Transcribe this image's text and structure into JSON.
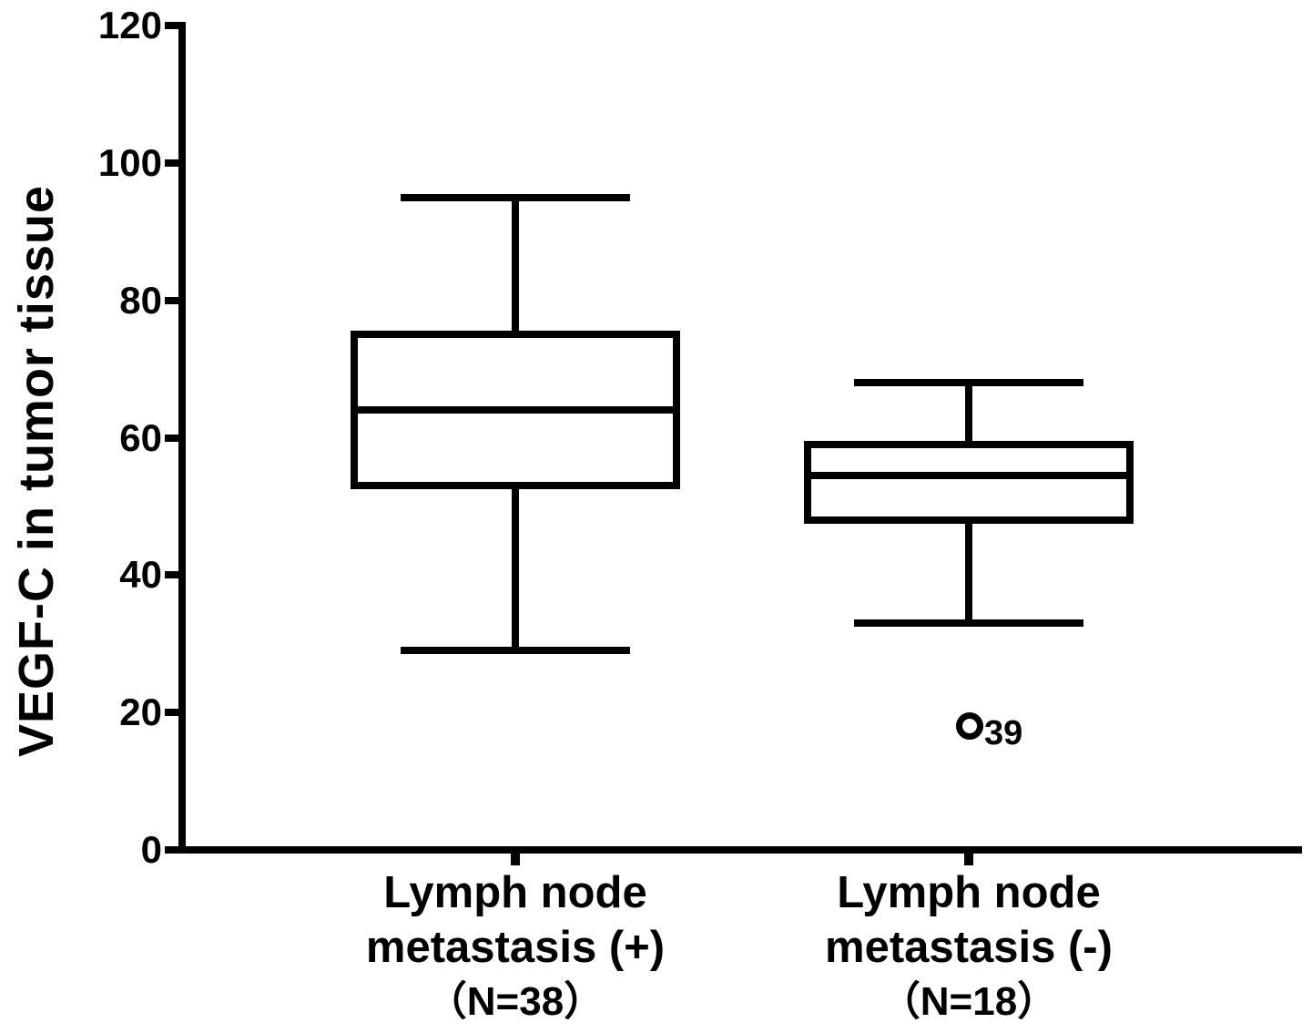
{
  "figure": {
    "background_color": "#ffffff",
    "ink_color": "#000000"
  },
  "chart_data": {
    "type": "boxplot",
    "title": "",
    "ylabel": "VEGF-C in tumor tissue",
    "xlabel": "",
    "ylim": [
      0,
      120
    ],
    "yticks": [
      0,
      20,
      40,
      60,
      80,
      100,
      120
    ],
    "grid": false,
    "legend": false,
    "categories": [
      {
        "label_lines": [
          "Lymph node",
          "metastasis (+)",
          "（N=38）"
        ],
        "n": 38
      },
      {
        "label_lines": [
          "Lymph node",
          "metastasis (-)",
          "（N=18）"
        ],
        "n": 18
      }
    ],
    "series": [
      {
        "name": "Lymph node metastasis (+)",
        "whisker_low": 29,
        "q1": 53,
        "median": 64,
        "q3": 75,
        "whisker_high": 95,
        "outliers": []
      },
      {
        "name": "Lymph node metastasis (-)",
        "whisker_low": 33,
        "q1": 48,
        "median": 54.5,
        "q3": 59,
        "whisker_high": 68,
        "outliers": [
          {
            "value": 18,
            "case_label": "39"
          }
        ]
      }
    ]
  }
}
